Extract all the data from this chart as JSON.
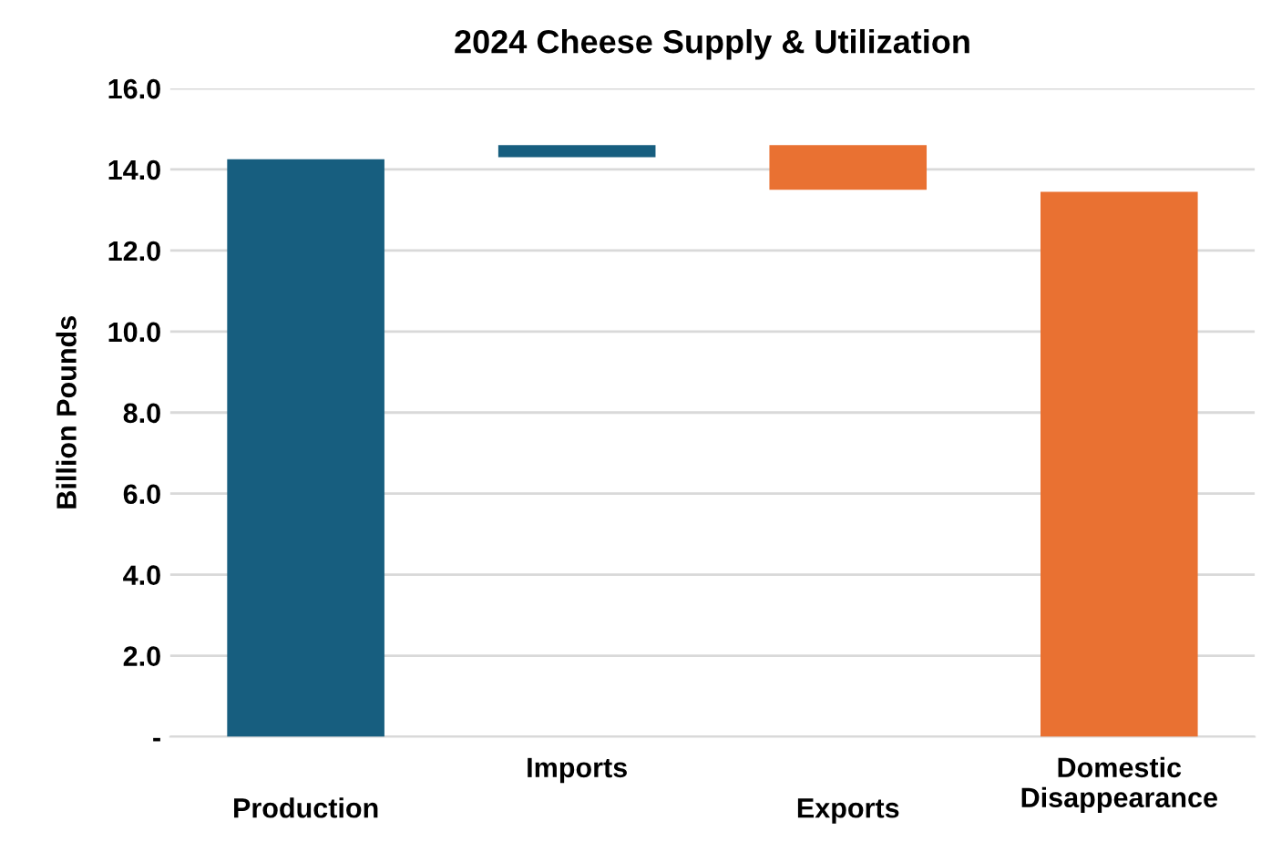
{
  "chart_data": {
    "type": "bar",
    "title": "2024 Cheese Supply & Utilization",
    "ylabel": "Billion Pounds",
    "categories": [
      "Production",
      "Imports",
      "Exports",
      "Domestic Disappearance"
    ],
    "values": [
      14.25,
      0.3,
      1.1,
      13.45
    ],
    "base": [
      0,
      14.3,
      13.5,
      0
    ],
    "colors": [
      "#175e7f",
      "#175e7f",
      "#e97132",
      "#e97132"
    ],
    "ylim": [
      0,
      16
    ],
    "yticks": [
      {
        "value": 0,
        "label": "-"
      },
      {
        "value": 2,
        "label": "2.0"
      },
      {
        "value": 4,
        "label": "4.0"
      },
      {
        "value": 6,
        "label": "6.0"
      },
      {
        "value": 8,
        "label": "8.0"
      },
      {
        "value": 10,
        "label": "10.0"
      },
      {
        "value": 12,
        "label": "12.0"
      },
      {
        "value": 14,
        "label": "14.0"
      },
      {
        "value": 16,
        "label": "16.0"
      }
    ],
    "grid": "y"
  }
}
